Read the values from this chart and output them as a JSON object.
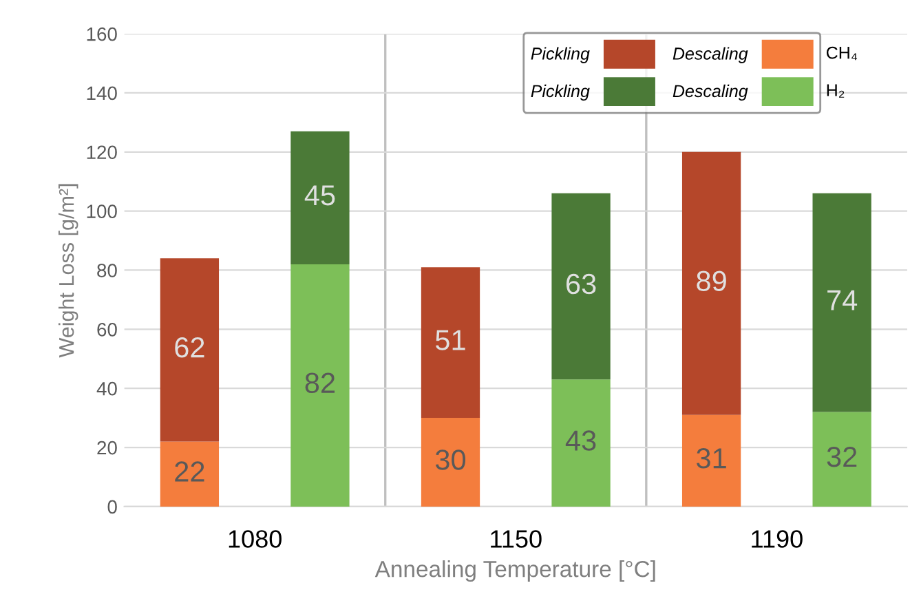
{
  "chart_data": {
    "type": "bar",
    "stacked": true,
    "categories": [
      "1080",
      null,
      "1150",
      null,
      "1190",
      null
    ],
    "series": [
      {
        "name": "Descaling",
        "color": "#f47d3d",
        "values": [
          22,
          null,
          30,
          null,
          31,
          null
        ]
      },
      {
        "name": "Pickling",
        "color": "#b5472a",
        "values": [
          62,
          null,
          51,
          null,
          89,
          null
        ]
      },
      {
        "name": "Descaling",
        "color": "#7dbf58",
        "values": [
          null,
          82,
          null,
          43,
          null,
          32
        ]
      },
      {
        "name": "Pickling",
        "color": "#4b7a37",
        "values": [
          null,
          45,
          null,
          63,
          null,
          74
        ]
      }
    ],
    "annotations": [
      "CH₄",
      "H₂"
    ],
    "xlabel": "Annealing Temperature [°C]",
    "ylabel": "Weight Loss [g/m²]",
    "ylim": [
      0,
      160
    ],
    "yticks": [
      0,
      20,
      40,
      60,
      80,
      100,
      120,
      140,
      160
    ],
    "grid": true,
    "legend": "top right",
    "data_labels": true
  }
}
